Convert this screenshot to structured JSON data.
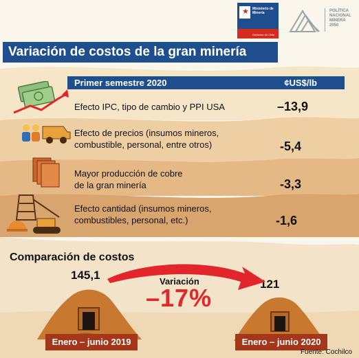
{
  "header": {
    "title": "Variación de costos de la gran minería",
    "ministry_text": "Ministerio de\nMinería",
    "ministry_sub": "Gobierno de Chile",
    "policy_logo_text": "POLÍTICA\nNACIONAL\nMINERA\n2050"
  },
  "table": {
    "period_header": "Primer semestre 2020",
    "unit_header": "¢US$/lb",
    "rows": [
      {
        "label": "Efecto IPC, tipo de cambio y PPI USA",
        "value": "–13,9",
        "icon": "money-chart-icon"
      },
      {
        "label": "Efecto de precios (insumos mineros,\ncombustible, personal, entre otros)",
        "value": "-5,4",
        "icon": "workers-truck-icon"
      },
      {
        "label": "Mayor producción de cobre\nde la gran minería",
        "value": "-3,3",
        "icon": "copper-plates-icon"
      },
      {
        "label": "Efecto cantidad (insumos mineros,\ncombustibles, personal, etc.)",
        "value": "-1,6",
        "icon": "mine-equipment-icon"
      }
    ]
  },
  "comparison": {
    "title": "Comparación de costos",
    "start_value": "145,1",
    "end_value": "121",
    "variation_label": "Variación",
    "variation_pct": "–17%",
    "start_period": "Enero – junio 2019",
    "end_period": "Enero – junio 2020"
  },
  "source": "Fuente: Cochilco",
  "colors": {
    "header_blue": "#1f4e8f",
    "accent_red": "#e3262b",
    "period_brown": "#a4361a",
    "band_light": "#f6e6c8",
    "band_mid": "#ebc99a",
    "band_dark": "#d9a56e"
  }
}
